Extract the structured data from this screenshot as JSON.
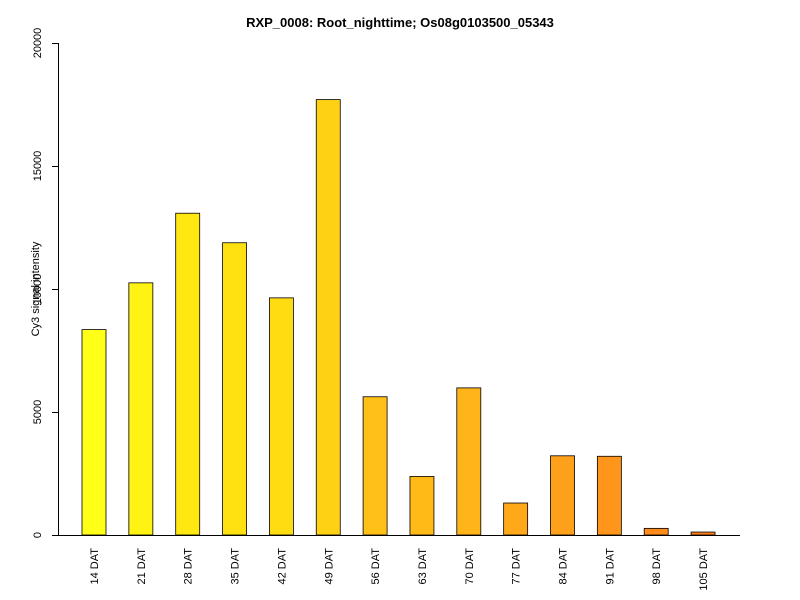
{
  "chart_data": {
    "type": "bar",
    "title": "RXP_0008: Root_nighttime; Os08g0103500_05343",
    "xlabel": "",
    "ylabel": "Cy3 signal intensity",
    "ylim": [
      0,
      20000
    ],
    "yticks": [
      0,
      5000,
      10000,
      15000,
      20000
    ],
    "grid": false,
    "legend": "none",
    "categories": [
      "14 DAT",
      "21 DAT",
      "28 DAT",
      "35 DAT",
      "42 DAT",
      "49 DAT",
      "56 DAT",
      "63 DAT",
      "70 DAT",
      "77 DAT",
      "84 DAT",
      "91 DAT",
      "98 DAT",
      "105 DAT"
    ],
    "values": [
      8350,
      10250,
      13080,
      11880,
      9640,
      17700,
      5620,
      2380,
      5980,
      1300,
      3220,
      3200,
      270,
      120
    ],
    "colors": [
      "#FFFF17",
      "#FFF314",
      "#FFE712",
      "#FFE112",
      "#FFDC12",
      "#FFD115",
      "#FFC118",
      "#FFBA18",
      "#FFB41A",
      "#FFA81A",
      "#FFA01A",
      "#FF951A",
      "#FF8B1A",
      "#FF7F1A"
    ]
  }
}
